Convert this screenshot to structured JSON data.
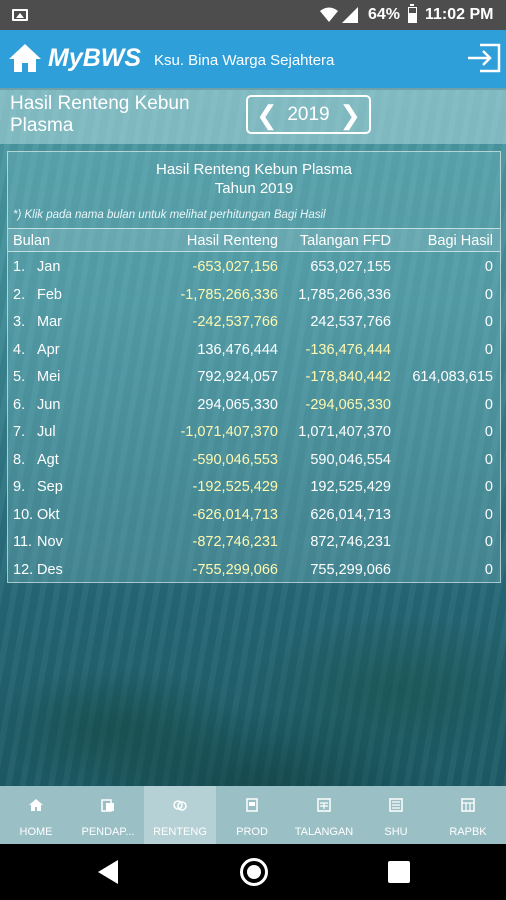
{
  "status_bar": {
    "battery_percent": "64%",
    "time": "11:02 PM",
    "icons": [
      "image-icon",
      "wifi-icon",
      "signal-icon",
      "battery-icon"
    ]
  },
  "app_bar": {
    "brand": "MyBWS",
    "organization": "Ksu. Bina Warga Sejahtera",
    "color": "#2e9fd8"
  },
  "sub_header": {
    "title": "Hasil Renteng Kebun Plasma",
    "year": "2019",
    "prev_symbol": "❮",
    "next_symbol": "❯"
  },
  "table": {
    "title": "Hasil Renteng Kebun Plasma",
    "subtitle": "Tahun 2019",
    "note": "*) Klik pada nama bulan untuk melihat perhitungan Bagi Hasil",
    "columns": [
      "Bulan",
      "Hasil Renteng",
      "Talangan FFD",
      "Bagi Hasil"
    ],
    "rows": [
      {
        "no": "1.",
        "month": "Jan",
        "hasil": "-653,027,156",
        "talangan": "653,027,155",
        "bagi": "0"
      },
      {
        "no": "2.",
        "month": "Feb",
        "hasil": "-1,785,266,336",
        "talangan": "1,785,266,336",
        "bagi": "0"
      },
      {
        "no": "3.",
        "month": "Mar",
        "hasil": "-242,537,766",
        "talangan": "242,537,766",
        "bagi": "0"
      },
      {
        "no": "4.",
        "month": "Apr",
        "hasil": "136,476,444",
        "talangan": "-136,476,444",
        "bagi": "0"
      },
      {
        "no": "5.",
        "month": "Mei",
        "hasil": "792,924,057",
        "talangan": "-178,840,442",
        "bagi": "614,083,615"
      },
      {
        "no": "6.",
        "month": "Jun",
        "hasil": "294,065,330",
        "talangan": "-294,065,330",
        "bagi": "0"
      },
      {
        "no": "7.",
        "month": "Jul",
        "hasil": "-1,071,407,370",
        "talangan": "1,071,407,370",
        "bagi": "0"
      },
      {
        "no": "8.",
        "month": "Agt",
        "hasil": "-590,046,553",
        "talangan": "590,046,554",
        "bagi": "0"
      },
      {
        "no": "9.",
        "month": "Sep",
        "hasil": "-192,525,429",
        "talangan": "192,525,429",
        "bagi": "0"
      },
      {
        "no": "10.",
        "month": "Okt",
        "hasil": "-626,014,713",
        "talangan": "626,014,713",
        "bagi": "0"
      },
      {
        "no": "11.",
        "month": "Nov",
        "hasil": "-872,746,231",
        "talangan": "872,746,231",
        "bagi": "0"
      },
      {
        "no": "12.",
        "month": "Des",
        "hasil": "-755,299,066",
        "talangan": "755,299,066",
        "bagi": "0"
      }
    ],
    "negative_color": "#fff8b0"
  },
  "bottom_nav": {
    "items": [
      {
        "label": "HOME",
        "icon": "home-icon",
        "active": false
      },
      {
        "label": "PENDAP...",
        "icon": "income-icon",
        "active": false
      },
      {
        "label": "RENTENG",
        "icon": "renteng-icon",
        "active": true
      },
      {
        "label": "PROD",
        "icon": "production-icon",
        "active": false
      },
      {
        "label": "TALANGAN",
        "icon": "talangan-icon",
        "active": false
      },
      {
        "label": "SHU",
        "icon": "shu-icon",
        "active": false
      },
      {
        "label": "RAPBK",
        "icon": "rapbk-icon",
        "active": false
      }
    ]
  },
  "system_nav": {
    "buttons": [
      "back-icon",
      "home-circle-icon",
      "recents-icon"
    ]
  }
}
